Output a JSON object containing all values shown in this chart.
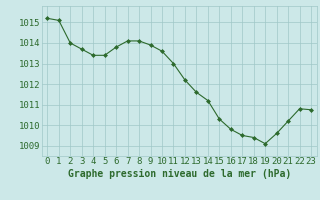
{
  "x": [
    0,
    1,
    2,
    3,
    4,
    5,
    6,
    7,
    8,
    9,
    10,
    11,
    12,
    13,
    14,
    15,
    16,
    17,
    18,
    19,
    20,
    21,
    22,
    23
  ],
  "y": [
    1015.2,
    1015.1,
    1014.0,
    1013.7,
    1013.4,
    1013.4,
    1013.8,
    1014.1,
    1014.1,
    1013.9,
    1013.6,
    1013.0,
    1012.2,
    1011.6,
    1011.2,
    1010.3,
    1009.8,
    1009.5,
    1009.4,
    1009.1,
    1009.6,
    1010.2,
    1010.8,
    1010.75
  ],
  "xlabel": "Graphe pression niveau de la mer (hPa)",
  "yticks": [
    1009,
    1010,
    1011,
    1012,
    1013,
    1014,
    1015
  ],
  "ylim_min": 1008.5,
  "ylim_max": 1015.8,
  "line_color": "#2d6a2d",
  "marker_color": "#2d6a2d",
  "bg_color": "#cce8e8",
  "grid_color": "#a0c8c8",
  "xlabel_color": "#2d6a2d",
  "xlabel_fontsize": 7,
  "tick_fontsize": 6.5
}
